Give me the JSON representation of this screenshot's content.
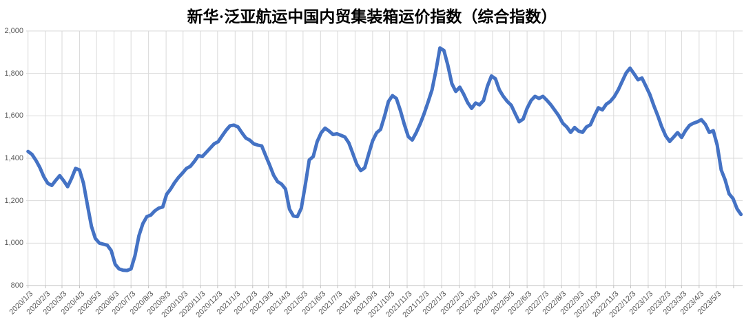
{
  "chart_data": {
    "type": "line",
    "title": "新华·泛亚航运中国内贸集装箱运价指数（综合指数）",
    "legend": "none",
    "grid": "on",
    "colors": {
      "series": "#4472C4",
      "gridline": "#D9D9D9",
      "axis": "#BFBFBF",
      "tick_label": "#595959",
      "title": "#000000"
    },
    "y_axis": {
      "min": 800,
      "max": 2000,
      "step": 200,
      "tick_labels": [
        "800",
        "1,000",
        "1,200",
        "1,400",
        "1,600",
        "1,800",
        "2,000"
      ]
    },
    "x_axis": {
      "tick_labels": [
        "2020/1/3",
        "2020/2/3",
        "2020/3/3",
        "2020/4/3",
        "2020/5/3",
        "2020/6/3",
        "2020/7/3",
        "2020/8/3",
        "2020/9/3",
        "2020/10/3",
        "2020/11/3",
        "2020/12/3",
        "2021/1/3",
        "2021/2/3",
        "2021/3/3",
        "2021/4/3",
        "2021/5/3",
        "2021/6/3",
        "2021/7/3",
        "2021/8/3",
        "2021/9/3",
        "2021/10/3",
        "2021/11/3",
        "2021/12/3",
        "2022/1/3",
        "2022/2/3",
        "2022/3/3",
        "2022/4/3",
        "2022/5/3",
        "2022/6/3",
        "2022/7/3",
        "2022/8/3",
        "2022/9/3",
        "2022/10/3",
        "2022/11/3",
        "2022/12/3",
        "2023/1/3",
        "2023/2/3",
        "2023/3/3",
        "2023/4/3",
        "2023/5/3"
      ],
      "extra_gridline": "2023/6/3"
    },
    "series": [
      {
        "name": "综合指数",
        "x": [
          "2020/1/3",
          "2020/1/10",
          "2020/1/17",
          "2020/1/24",
          "2020/1/31",
          "2020/2/7",
          "2020/2/14",
          "2020/2/21",
          "2020/2/28",
          "2020/3/6",
          "2020/3/13",
          "2020/3/20",
          "2020/3/27",
          "2020/4/3",
          "2020/4/10",
          "2020/4/17",
          "2020/4/24",
          "2020/5/1",
          "2020/5/8",
          "2020/5/15",
          "2020/5/22",
          "2020/5/29",
          "2020/6/5",
          "2020/6/12",
          "2020/6/19",
          "2020/6/26",
          "2020/7/3",
          "2020/7/10",
          "2020/7/17",
          "2020/7/24",
          "2020/7/31",
          "2020/8/7",
          "2020/8/14",
          "2020/8/21",
          "2020/8/28",
          "2020/9/4",
          "2020/9/11",
          "2020/9/18",
          "2020/9/25",
          "2020/10/2",
          "2020/10/9",
          "2020/10/16",
          "2020/10/23",
          "2020/10/30",
          "2020/11/6",
          "2020/11/13",
          "2020/11/20",
          "2020/11/27",
          "2020/12/4",
          "2020/12/11",
          "2020/12/18",
          "2020/12/25",
          "2021/1/1",
          "2021/1/8",
          "2021/1/15",
          "2021/1/22",
          "2021/1/29",
          "2021/2/5",
          "2021/2/12",
          "2021/2/19",
          "2021/2/26",
          "2021/3/5",
          "2021/3/12",
          "2021/3/19",
          "2021/3/26",
          "2021/4/2",
          "2021/4/9",
          "2021/4/16",
          "2021/4/23",
          "2021/4/30",
          "2021/5/7",
          "2021/5/14",
          "2021/5/21",
          "2021/5/28",
          "2021/6/4",
          "2021/6/11",
          "2021/6/18",
          "2021/6/25",
          "2021/7/2",
          "2021/7/9",
          "2021/7/16",
          "2021/7/23",
          "2021/7/30",
          "2021/8/6",
          "2021/8/13",
          "2021/8/20",
          "2021/8/27",
          "2021/9/3",
          "2021/9/10",
          "2021/9/17",
          "2021/9/24",
          "2021/10/1",
          "2021/10/8",
          "2021/10/15",
          "2021/10/22",
          "2021/10/29",
          "2021/11/5",
          "2021/11/12",
          "2021/11/19",
          "2021/11/26",
          "2021/12/3",
          "2021/12/10",
          "2021/12/17",
          "2021/12/24",
          "2021/12/31",
          "2022/1/7",
          "2022/1/14",
          "2022/1/21",
          "2022/1/28",
          "2022/2/4",
          "2022/2/11",
          "2022/2/18",
          "2022/2/25",
          "2022/3/4",
          "2022/3/11",
          "2022/3/18",
          "2022/3/25",
          "2022/4/1",
          "2022/4/8",
          "2022/4/15",
          "2022/4/22",
          "2022/4/29",
          "2022/5/6",
          "2022/5/13",
          "2022/5/20",
          "2022/5/27",
          "2022/6/3",
          "2022/6/10",
          "2022/6/17",
          "2022/6/24",
          "2022/7/1",
          "2022/7/8",
          "2022/7/15",
          "2022/7/22",
          "2022/7/29",
          "2022/8/5",
          "2022/8/12",
          "2022/8/19",
          "2022/8/26",
          "2022/9/2",
          "2022/9/9",
          "2022/9/16",
          "2022/9/23",
          "2022/9/30",
          "2022/10/7",
          "2022/10/14",
          "2022/10/21",
          "2022/10/28",
          "2022/11/4",
          "2022/11/11",
          "2022/11/18",
          "2022/11/25",
          "2022/12/2",
          "2022/12/9",
          "2022/12/16",
          "2022/12/23",
          "2022/12/30",
          "2023/1/6",
          "2023/1/13",
          "2023/1/20",
          "2023/1/27",
          "2023/2/3",
          "2023/2/10",
          "2023/2/17",
          "2023/2/24",
          "2023/3/3",
          "2023/3/10",
          "2023/3/17",
          "2023/3/24",
          "2023/3/31",
          "2023/4/7",
          "2023/4/14",
          "2023/4/21",
          "2023/4/28",
          "2023/5/5",
          "2023/5/12",
          "2023/5/19",
          "2023/5/26",
          "2023/6/2",
          "2023/6/9",
          "2023/6/16"
        ],
        "values": [
          1432,
          1418,
          1390,
          1356,
          1312,
          1282,
          1272,
          1296,
          1318,
          1294,
          1266,
          1305,
          1352,
          1345,
          1282,
          1180,
          1080,
          1022,
          1000,
          995,
          990,
          965,
          900,
          878,
          872,
          871,
          878,
          940,
          1035,
          1092,
          1125,
          1132,
          1152,
          1165,
          1170,
          1230,
          1255,
          1285,
          1310,
          1330,
          1352,
          1362,
          1385,
          1412,
          1408,
          1428,
          1448,
          1468,
          1478,
          1505,
          1532,
          1553,
          1556,
          1548,
          1520,
          1495,
          1485,
          1468,
          1462,
          1458,
          1412,
          1368,
          1320,
          1290,
          1278,
          1255,
          1160,
          1128,
          1125,
          1165,
          1275,
          1392,
          1408,
          1478,
          1520,
          1542,
          1528,
          1512,
          1515,
          1508,
          1500,
          1472,
          1422,
          1372,
          1342,
          1355,
          1420,
          1482,
          1520,
          1536,
          1598,
          1668,
          1695,
          1682,
          1625,
          1560,
          1502,
          1486,
          1520,
          1562,
          1610,
          1665,
          1722,
          1815,
          1920,
          1908,
          1838,
          1752,
          1715,
          1735,
          1702,
          1662,
          1635,
          1660,
          1652,
          1672,
          1740,
          1788,
          1775,
          1722,
          1692,
          1668,
          1650,
          1610,
          1572,
          1585,
          1635,
          1672,
          1692,
          1682,
          1692,
          1673,
          1652,
          1626,
          1600,
          1565,
          1548,
          1522,
          1545,
          1528,
          1522,
          1548,
          1558,
          1600,
          1638,
          1628,
          1655,
          1668,
          1690,
          1722,
          1762,
          1802,
          1825,
          1798,
          1770,
          1778,
          1740,
          1700,
          1648,
          1600,
          1548,
          1505,
          1479,
          1500,
          1521,
          1498,
          1530,
          1555,
          1565,
          1572,
          1582,
          1560,
          1522,
          1530,
          1462,
          1345,
          1298,
          1232,
          1210,
          1162,
          1135
        ]
      }
    ]
  }
}
